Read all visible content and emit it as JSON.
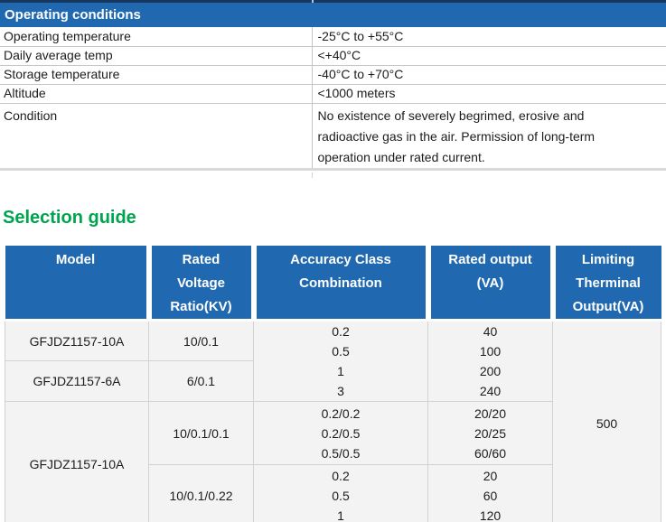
{
  "colors": {
    "header_blue": "#2069b1",
    "top_line_navy": "#17375e",
    "heading_green": "#00a44e",
    "table_body_bg": "#f3f3f3",
    "grid_line": "#d2d2d2"
  },
  "operating_conditions": {
    "title": "Operating conditions",
    "rows": [
      {
        "label": "Operating temperature",
        "value": "-25°C to +55°C"
      },
      {
        "label": "Daily average temp",
        "value": "<+40°C"
      },
      {
        "label": "Storage temperature",
        "value": "-40°C to +70°C"
      },
      {
        "label": "Altitude",
        "value": "<1000 meters"
      },
      {
        "label": "Condition",
        "value": "No existence of severely begrimed, erosive and\nradioactive gas in the air. Permission of long-term\noperation under rated current."
      }
    ]
  },
  "selection_guide": {
    "title": "Selection guide",
    "columns": [
      "Model",
      "Rated\nVoltage\nRatio(KV)",
      "Accuracy Class\nCombination",
      "Rated output\n(VA)",
      "Limiting\nTherminal\nOutput(VA)"
    ],
    "body": {
      "row1": {
        "model": "GFJDZ1157-10A",
        "voltage_ratio": "10/0.1"
      },
      "row2": {
        "model": "GFJDZ1157-6A",
        "voltage_ratio": "6/0.1"
      },
      "rows12_accuracy": "0.2\n0.5\n1\n3",
      "rows12_output": "40\n100\n200\n240",
      "rows34_model": "GFJDZ1157-10A",
      "row3": {
        "voltage_ratio": "10/0.1/0.1",
        "accuracy": "0.2/0.2\n0.2/0.5\n0.5/0.5",
        "output": "20/20\n20/25\n60/60"
      },
      "row4": {
        "voltage_ratio": "10/0.1/0.22",
        "accuracy": "0.2\n0.5\n1",
        "output": "20\n60\n120"
      },
      "limiting_terminal_output": "500"
    }
  }
}
